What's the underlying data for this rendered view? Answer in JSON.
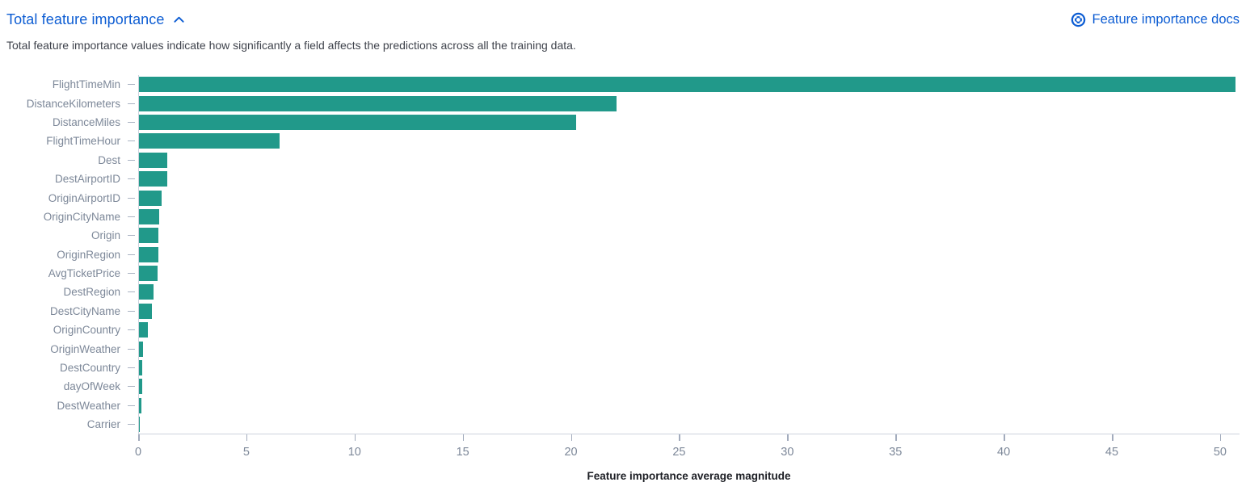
{
  "header": {
    "title": "Total feature importance",
    "collapse_icon": "chevron-up-icon",
    "docs_link_label": "Feature importance docs",
    "docs_icon": "help-ring-icon"
  },
  "description": "Total feature importance values indicate how significantly a field affects the predictions across all the training data.",
  "colors": {
    "bar": "#21998a",
    "link_blue": "#0d5dd3",
    "axis_text": "#7d8899",
    "axis_line": "#ccd3de",
    "axis_title_text": "#1c1e24",
    "description_text": "#3f434c"
  },
  "chart_data": {
    "type": "bar",
    "orientation": "horizontal",
    "title": "",
    "xlabel": "Feature importance average magnitude",
    "ylabel": "",
    "xlim": [
      0,
      50.9
    ],
    "x_ticks": [
      0,
      5,
      10,
      15,
      20,
      25,
      30,
      35,
      40,
      45,
      50
    ],
    "grid": false,
    "legend": false,
    "categories": [
      "FlightTimeMin",
      "DistanceKilometers",
      "DistanceMiles",
      "FlightTimeHour",
      "Dest",
      "DestAirportID",
      "OriginAirportID",
      "OriginCityName",
      "Origin",
      "OriginRegion",
      "AvgTicketPrice",
      "DestRegion",
      "DestCityName",
      "OriginCountry",
      "OriginWeather",
      "DestCountry",
      "dayOfWeek",
      "DestWeather",
      "Carrier"
    ],
    "values": [
      50.7,
      22.1,
      20.2,
      6.5,
      1.32,
      1.3,
      1.06,
      0.95,
      0.91,
      0.88,
      0.85,
      0.69,
      0.58,
      0.41,
      0.17,
      0.15,
      0.15,
      0.13,
      0.04
    ]
  }
}
